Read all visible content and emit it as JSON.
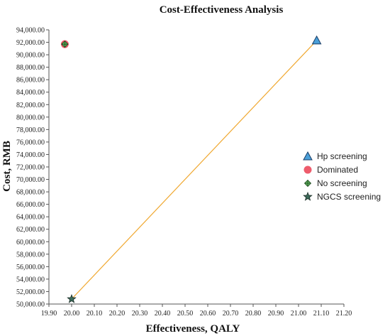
{
  "chart_data": {
    "type": "scatter",
    "title": "Cost-Effectiveness Analysis",
    "xlabel": "Effectiveness, QALY",
    "ylabel": "Cost, RMB",
    "xlim": [
      19.9,
      21.2
    ],
    "ylim": [
      50000,
      94000
    ],
    "x_ticks": [
      "19.90",
      "20.00",
      "20.10",
      "20.20",
      "20.30",
      "20.40",
      "20.50",
      "20.60",
      "20.70",
      "20.80",
      "20.90",
      "21.00",
      "21.10",
      "21.20"
    ],
    "y_ticks": [
      "50,000.00",
      "52,000.00",
      "54,000.00",
      "56,000.00",
      "58,000.00",
      "60,000.00",
      "62,000.00",
      "64,000.00",
      "66,000.00",
      "68,000.00",
      "70,000.00",
      "72,000.00",
      "74,000.00",
      "76,000.00",
      "78,000.00",
      "80,000.00",
      "82,000.00",
      "84,000.00",
      "86,000.00",
      "88,000.00",
      "90,000.00",
      "92,000.00",
      "94,000.00"
    ],
    "grid": false,
    "legend_position": "right",
    "series": [
      {
        "name": "Hp screening",
        "marker": "triangle",
        "color": "#4a9fd8",
        "points": [
          {
            "x": 21.08,
            "y": 92300
          }
        ]
      },
      {
        "name": "Dominated",
        "marker": "circle",
        "color": "#ee5c6c",
        "points": [
          {
            "x": 19.97,
            "y": 91700
          }
        ]
      },
      {
        "name": "No screening",
        "marker": "diamond",
        "color": "#5fb35f",
        "points": [
          {
            "x": 19.97,
            "y": 91700
          }
        ]
      },
      {
        "name": "NGCS screening",
        "marker": "star",
        "color": "#3c6b5a",
        "points": [
          {
            "x": 20.0,
            "y": 50800
          }
        ]
      }
    ],
    "frontier": {
      "color": "#f0a830",
      "points": [
        {
          "x": 20.0,
          "y": 50800
        },
        {
          "x": 21.08,
          "y": 92300
        }
      ]
    }
  }
}
